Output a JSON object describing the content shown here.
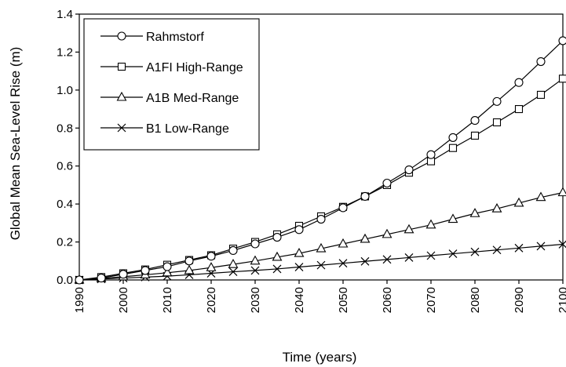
{
  "chart_data": {
    "type": "line",
    "xlabel": "Time (years)",
    "ylabel": "Global Mean Sea-Level Rise (m)",
    "xlim": [
      1990,
      2100
    ],
    "ylim": [
      0,
      1.4
    ],
    "x_ticks": [
      1990,
      2000,
      2010,
      2020,
      2030,
      2040,
      2050,
      2060,
      2070,
      2080,
      2090,
      2100
    ],
    "y_ticks": [
      "0.0",
      "0.2",
      "0.4",
      "0.6",
      "0.8",
      "1.0",
      "1.2",
      "1.4"
    ],
    "grid": false,
    "legend_position": "top-left",
    "x": [
      1990,
      1995,
      2000,
      2005,
      2010,
      2015,
      2020,
      2025,
      2030,
      2035,
      2040,
      2045,
      2050,
      2055,
      2060,
      2065,
      2070,
      2075,
      2080,
      2085,
      2090,
      2095,
      2100
    ],
    "series": [
      {
        "name": "Rahmstorf",
        "marker": "circle",
        "values": [
          0.0,
          0.01,
          0.03,
          0.05,
          0.07,
          0.1,
          0.125,
          0.155,
          0.19,
          0.225,
          0.265,
          0.32,
          0.38,
          0.44,
          0.51,
          0.58,
          0.66,
          0.75,
          0.84,
          0.94,
          1.04,
          1.15,
          1.26
        ]
      },
      {
        "name": "A1FI High-Range",
        "marker": "square",
        "values": [
          0.0,
          0.015,
          0.035,
          0.055,
          0.08,
          0.105,
          0.13,
          0.165,
          0.2,
          0.24,
          0.285,
          0.335,
          0.385,
          0.44,
          0.5,
          0.565,
          0.625,
          0.695,
          0.76,
          0.83,
          0.9,
          0.975,
          1.06
        ]
      },
      {
        "name": "A1B Med-Range",
        "marker": "triangle",
        "values": [
          0.0,
          0.008,
          0.017,
          0.027,
          0.038,
          0.05,
          0.065,
          0.082,
          0.1,
          0.12,
          0.14,
          0.165,
          0.19,
          0.215,
          0.24,
          0.265,
          0.29,
          0.32,
          0.35,
          0.375,
          0.405,
          0.435,
          0.46
        ]
      },
      {
        "name": "B1 Low-Range",
        "marker": "x",
        "values": [
          0.0,
          0.005,
          0.01,
          0.015,
          0.02,
          0.027,
          0.035,
          0.043,
          0.05,
          0.058,
          0.068,
          0.078,
          0.088,
          0.098,
          0.108,
          0.118,
          0.128,
          0.138,
          0.148,
          0.158,
          0.168,
          0.178,
          0.188
        ]
      }
    ]
  }
}
